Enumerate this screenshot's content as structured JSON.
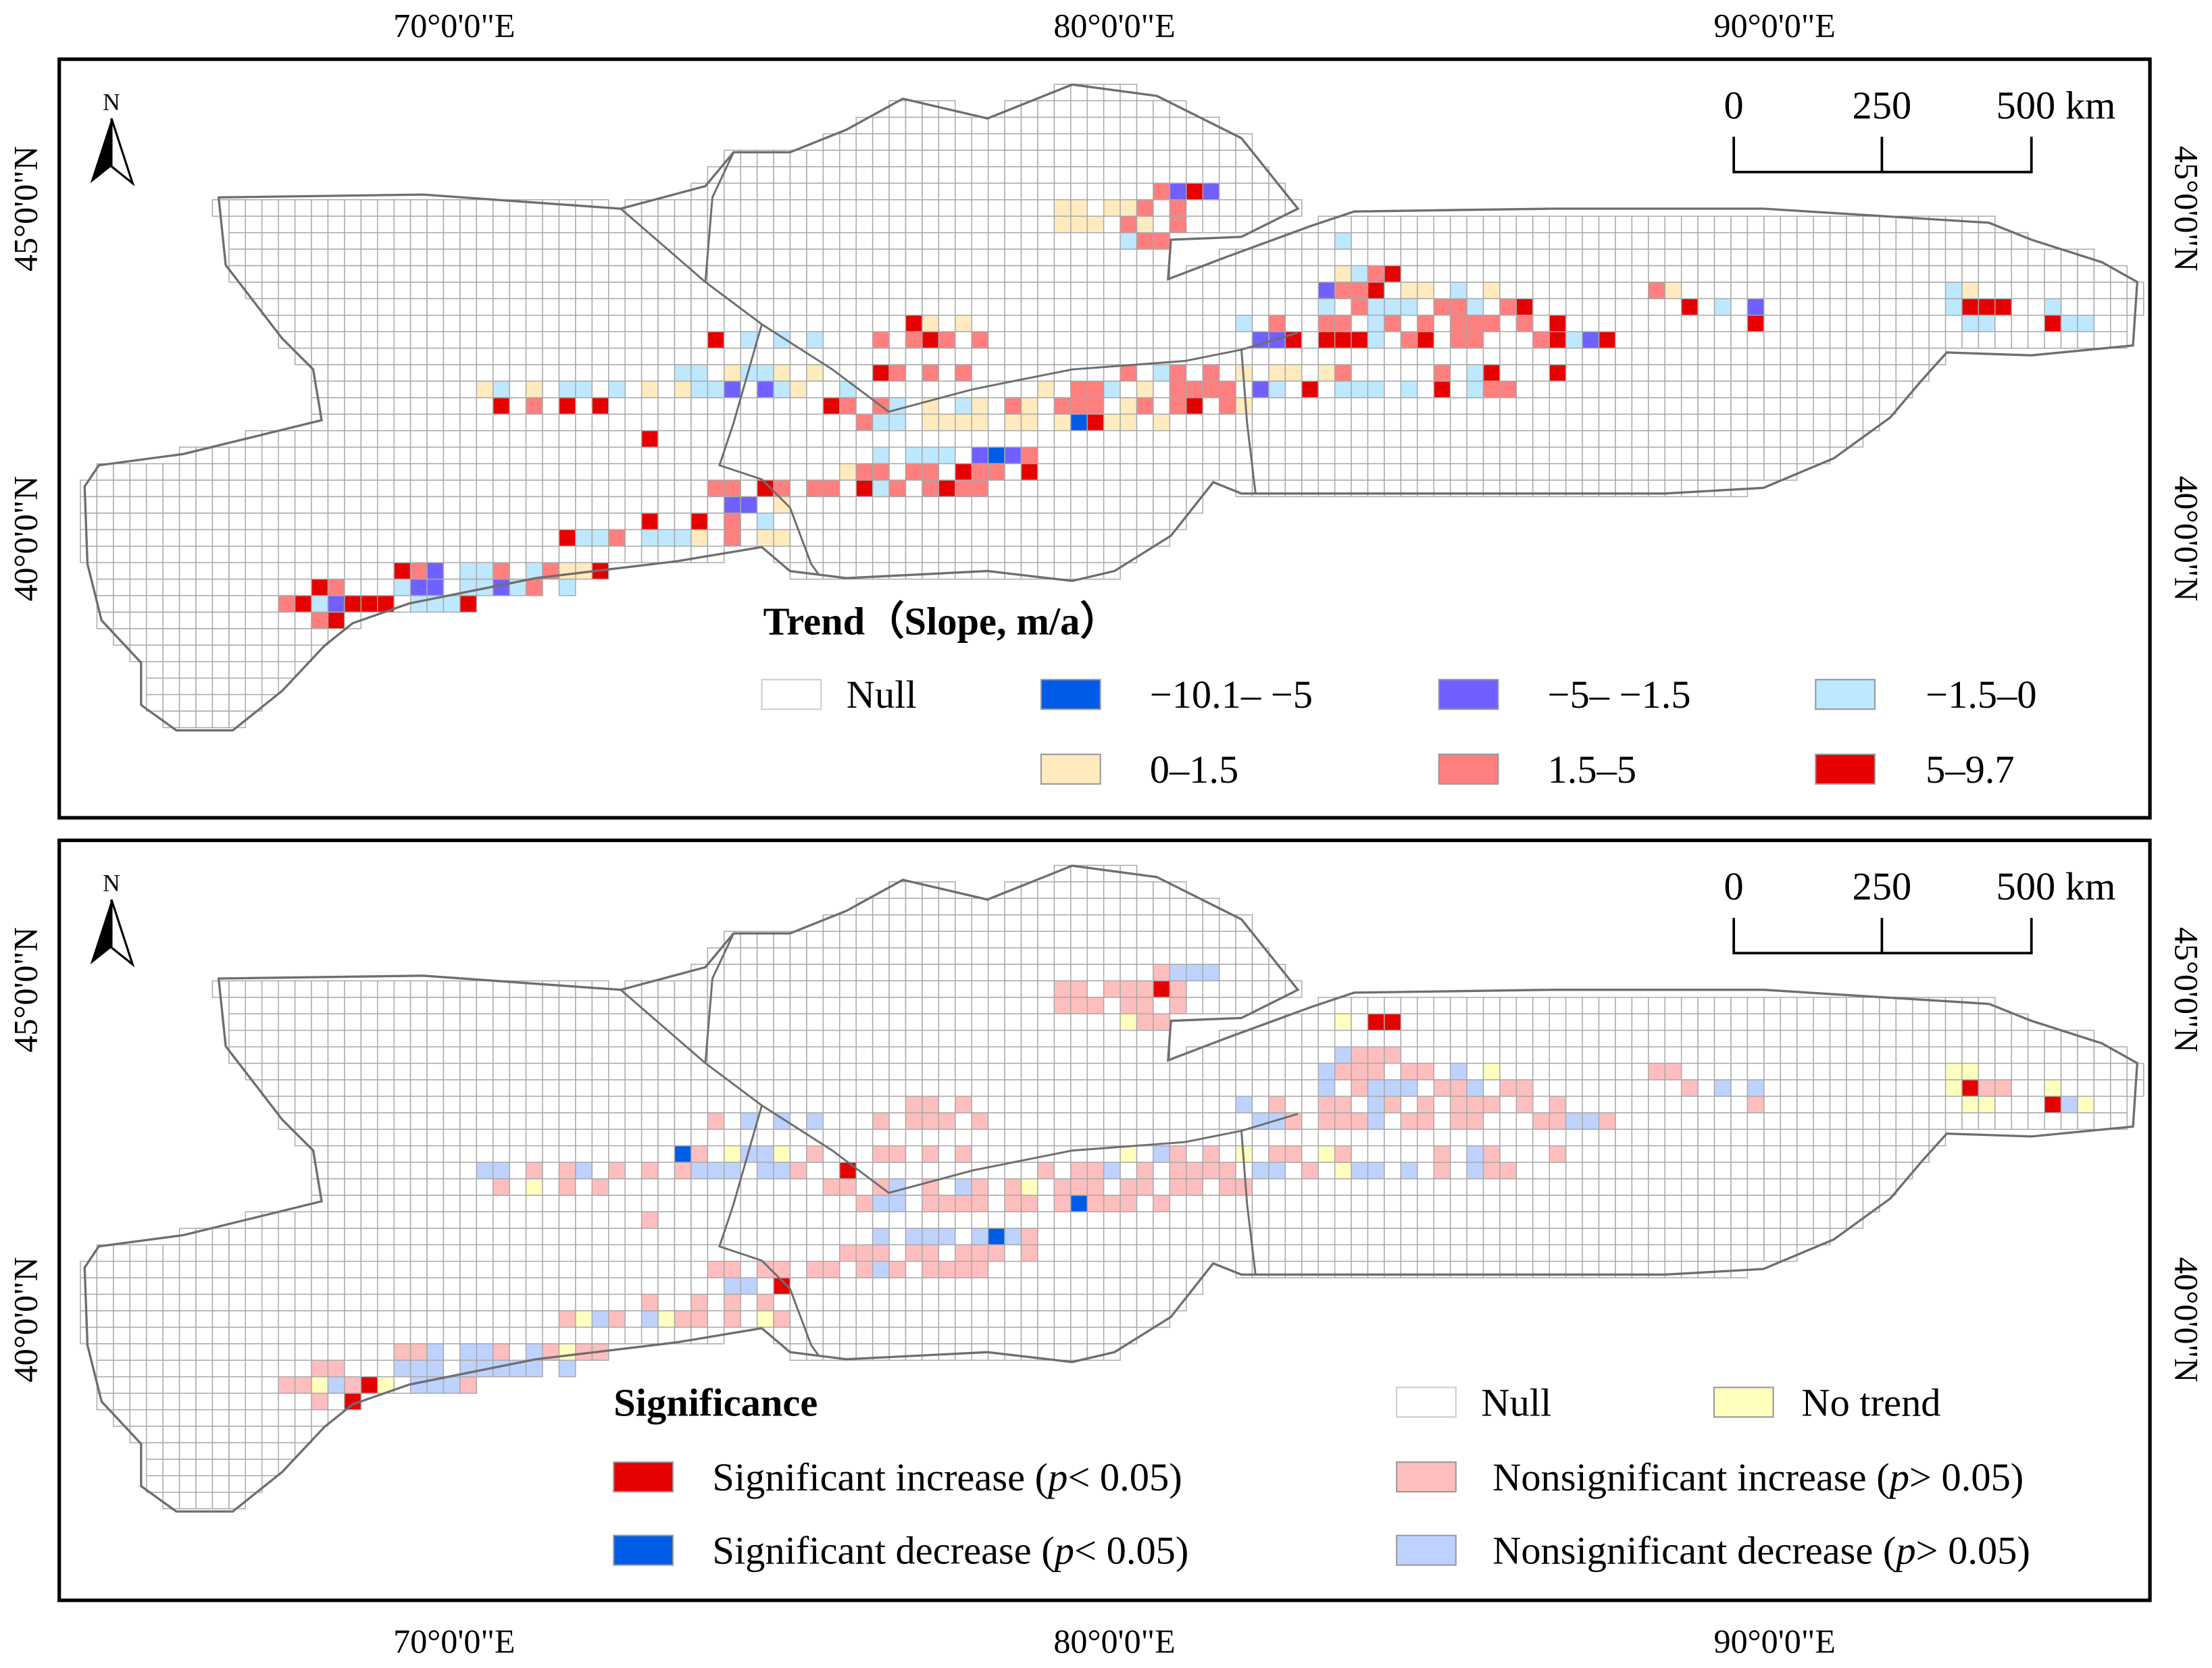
{
  "axes": {
    "lon_labels": [
      "70°0'0\"E",
      "80°0'0\"E",
      "90°0'0\"E"
    ],
    "lat_labels": [
      "45°0'0\"N",
      "40°0'0\"N"
    ]
  },
  "north_arrow": {
    "label": "N"
  },
  "scale_bar": {
    "ticks": [
      "0",
      "250",
      "500 km"
    ]
  },
  "colors": {
    "grid": "#a8a8a8",
    "outline": "#6e6e6e",
    "B": "#005ce6",
    "P": "#7060ff",
    "L": "#bee8ff",
    "Y": "#ffebbe",
    "p": "#ff7f7f",
    "R": "#e60000",
    "S": "#e60000",
    "D": "#005ce6",
    "i": "#ffbebe",
    "d": "#bed2ff",
    "n": "#ffffbe"
  },
  "trend_panel": {
    "legend": {
      "title": "Trend（Slope, m/a）",
      "items": [
        {
          "code": "null",
          "label": "Null"
        },
        {
          "code": "B",
          "label": "−10.1– −5"
        },
        {
          "code": "P",
          "label": "−5– −1.5"
        },
        {
          "code": "L",
          "label": "−1.5–0"
        },
        {
          "code": "Y",
          "label": "0–1.5"
        },
        {
          "code": "p",
          "label": "1.5–5"
        },
        {
          "code": "R",
          "label": "5–9.7"
        }
      ]
    },
    "cells": {
      "4": "65p 66P 67R 68P",
      "5": "59Y 60Y 62Y 63Y 64p 66p",
      "6": "59Y 60Y 61Y 63p 64Y 66p",
      "7": "63L 64p 65p 76L",
      "9": "76Y 77L 78p 79R",
      "10": "75P 76p 77p 78R 80Y 81Y 83L 85Y 95p 96Y 113L 114Y",
      "11": "75L 77p 78L 79L 80L 82p 83p 84L 86p 87R 97R 99L 101P 113L 114R 115R 116R 119L",
      "12": "50R 51Y 53Y 70L 72p 75p 76p 78L 79p 81p 83p 84p 85p 87p 89R 101R 114L 115L 119R 120L 121L",
      "13": "38R 40L 42L 44L 48p 50p 51R 52p 54p 71P 72P 73R 75R 76R 77R 78L 80p 81R 83p 84p 88p 89R 90L 91P 92R",
      "15": "36L 37L 39Y 40L 41L 42Y 44Y 48R 49p 51p 53p 63p 65L 66p 68p 70Y 72Y 73Y 75Y 76p 82p 84L 85R 89R",
      "16": "24Y 25L 27Y 29L 30L 32L 34Y 36Y 37L 38L 39P 41P 42L 43Y 46L 58Y 60p 61p 62L 64Y 66p 67p 68p 69p 71P 72L 74R 76L 77L 78L 80L 82R 84L 85p 86p",
      "17": "25R 27p 29R 31R 45R 46p 48p 49L 51Y 53L 54Y 56p 57Y 59p 60p 61p 63Y 64p 66p 67R 69p 70Y",
      "18": "47p 48L 49L 51Y 52Y 53Y 54Y 56Y 57Y 59Y 60B 61R 62Y 63Y 65Y",
      "19": "34R",
      "20": "48L 50L 51L 52L 54P 55B 56P 57p",
      "21": "46Y 47p 48p 50p 51p 53R 54p 55p 57R",
      "22": "38p 39p 41R 42p 44p 45p 47R 48L 49p 51p 52R 53p 54p",
      "23": "39P 40P 42Y",
      "24": "34R 37R 39p 41L",
      "25": "29R 30L 31L 32p 34L 35L 36L 37Y 39p 41Y 42Y",
      "27": "19R 20p 21P 23L 24L 25p 27L 28p 29Y 30Y 31R",
      "28": "14R 15p 19L 20P 21P 23L 24L 25P 26L 27p 29L",
      "29": "12p 13R 14L 15P 16R 17R 18R 20L 21L 22L 23R",
      "30": "14p 15R"
    }
  },
  "significance_panel": {
    "legend": {
      "title": "Significance",
      "null_label": "Null",
      "no_trend_label": "No trend",
      "items": [
        {
          "code": "S",
          "prefix": "Significant increase (",
          "italic": "p",
          "suffix": "< 0.05)"
        },
        {
          "code": "i",
          "prefix": "Nonsignificant increase (",
          "italic": "p",
          "suffix": "> 0.05)"
        },
        {
          "code": "D",
          "prefix": "Significant decrease (",
          "italic": "p",
          "suffix": "< 0.05)"
        },
        {
          "code": "d",
          "prefix": "Nonsignificant decrease (",
          "italic": "p",
          "suffix": "> 0.05)"
        }
      ]
    },
    "cells": {
      "4": "65i 66d 67d 68d",
      "5": "59i 60i 62i 63i 64i 65S 66i",
      "6": "59i 60i 61i 63i 64i 66i",
      "7": "63n 64i 65i 76n 78S 79S",
      "9": "76d 77i 78i 79i",
      "10": "75d 76i 77i 78i 80i 81i 83d 85n 95i 96i 113n 114n",
      "11": "75d 77i 78d 79d 80d 82i 83i 84d 86i 87i 97i 99d 101d 113n 114S 115i 116i 119n",
      "12": "50i 51i 53i 70d 72i 75i 76i 78d 79i 81i 83i 84i 85i 87i 89i 101i 114n 115n 119S 120d 121n",
      "13": "38i 40d 42d 44d 48i 50i 51i 52i 54i 71d 72d 73i 75i 76i 77i 78d 80i 81i 83i 84i 88i 89i 90d 91d 92i",
      "15": "36D 37i 39n 40d 41d 42n 44i 48i 49i 51i 53i 63n 65d 66i 68i 70n 72i 73i 75n 76i 82i 84d 85i 89i",
      "16": "24d 25d 27i 29i 30d 32i 34i 36i 37d 38d 39d 41d 42d 43i 46S 58i 60i 61i 62d 64i 66i 67i 68i 69i 71d 72d 74i 76n 77d 78d 80d 82i 84d 85i 86i",
      "17": "25i 27n 29i 31i 45i 46i 48i 49d 51i 53d 54i 56i 57n 59i 60i 61i 63i 64i 66i 67i 69i 70i",
      "18": "47i 48d 49d 51i 52i 53i 54i 56i 57i 59i 60D 61i 62i 63i 65i",
      "19": "34i",
      "20": "48d 50d 51d 52d 54d 55D 56d 57i",
      "21": "46i 47i 48i 50i 51i 53i 54i 55i 57i",
      "22": "38i 39i 41i 42i 44i 45i 47i 48d 49i 51i 52i 53i 54i",
      "23": "39d 40d 42S",
      "24": "34i 37i 39i 41i",
      "25": "29i 30n 31d 32i 34d 35n 36i 37i 39i 41n 42i",
      "27": "19i 20i 21d 23d 24d 25i 27d 28i 29n 30i 31i",
      "28": "14i 15i 19d 20d 21d 23d 24d 25d 26d 27d 29d",
      "29": "12i 13i 14n 15d 16i 17S 18n 20d 21d 22d 23i",
      "30": "14i 16S"
    }
  }
}
